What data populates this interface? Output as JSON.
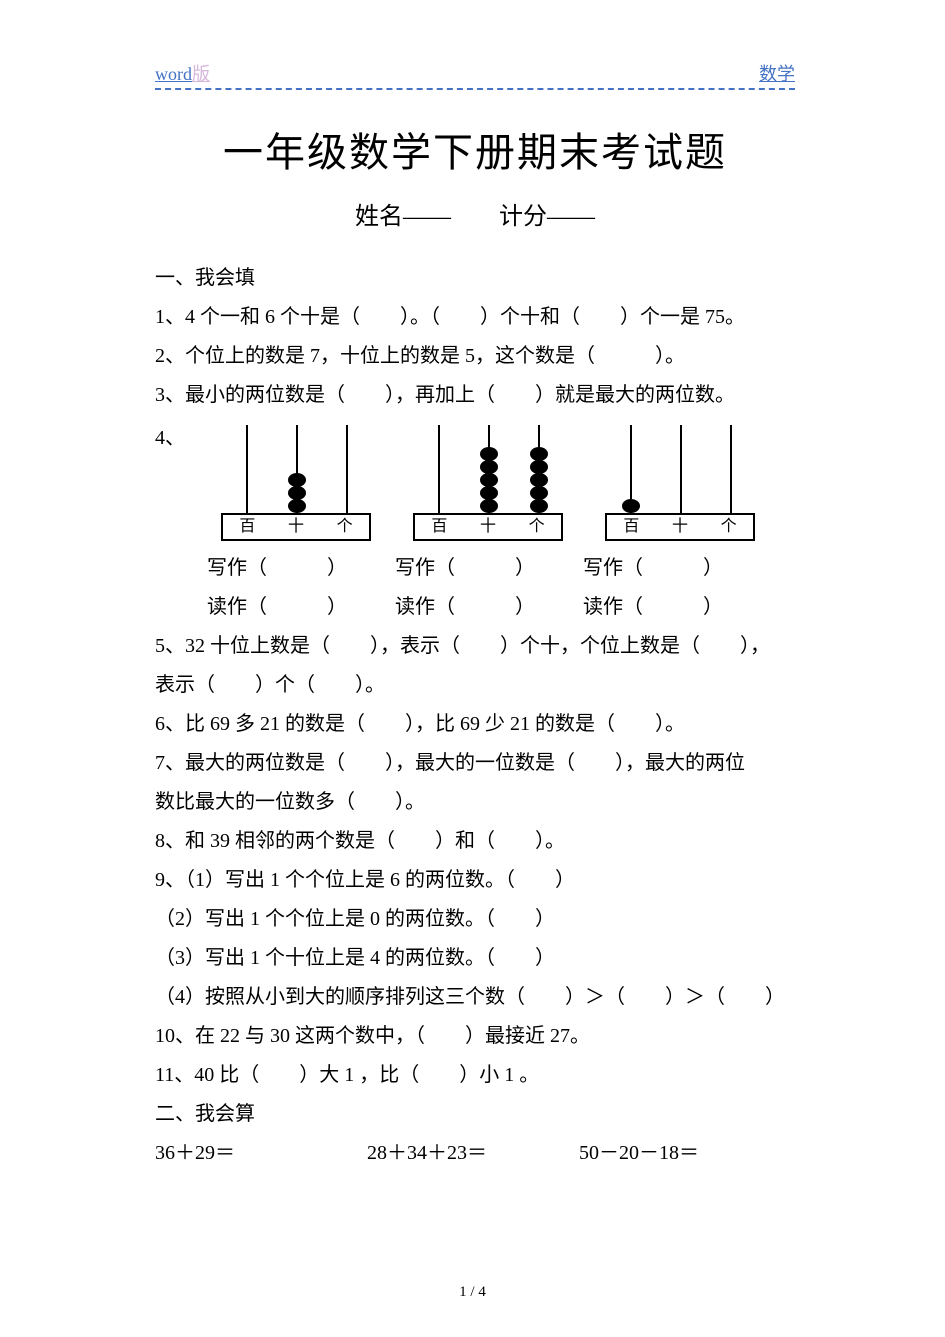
{
  "header": {
    "left_word": "word",
    "left_ban": "版",
    "right": "数学"
  },
  "title": "一年级数学下册期末考试题",
  "subtitle": "姓名——　　计分——",
  "section1_title": "一、我会填",
  "q1": "1、4 个一和 6 个十是（　　）。（　　）个十和（　　）个一是 75。",
  "q2": "2、个位上的数是 7，十位上的数是 5，这个数是（　　　）。",
  "q3": "3、最小的两位数是（　　），再加上（　　）就是最大的两位数。",
  "q4_label": "4、",
  "abacus_labels": {
    "bai": "百",
    "shi": "十",
    "ge": "个"
  },
  "abacus_beads": {
    "a1": {
      "bai": 0,
      "shi": 3,
      "ge": 0
    },
    "a2": {
      "bai": 0,
      "shi": 5,
      "ge": 5
    },
    "a3": {
      "bai": 1,
      "shi": 0,
      "ge": 0
    }
  },
  "write_label": "写作（　　　）",
  "read_label": "读作（　　　）",
  "q5a": "5、32 十位上数是（　　），表示（　　）个十，个位上数是（　　），",
  "q5b": "表示（　　）个（　　）。",
  "q6": "6、比 69 多 21 的数是（　　），比 69 少 21 的数是（　　）。",
  "q7a": "7、最大的两位数是（　　），最大的一位数是（　　），最大的两位",
  "q7b": "数比最大的一位数多（　　）。",
  "q8": "8、和 39 相邻的两个数是（　　）和（　　）。",
  "q9a": "9、（1）写出 1 个个位上是 6 的两位数。（　　）",
  "q9b": "（2）写出 1 个个位上是 0 的两位数。（　　）",
  "q9c": "（3）写出 1 个十位上是 4 的两位数。（　　）",
  "q9d": "（4）按照从小到大的顺序排列这三个数（　　）＞（　　）＞（　　）",
  "q10": "10、在 22 与 30 这两个数中，（　　）最接近 27。",
  "q11": "11、40 比（　　）大 1 ，比（　　）小 1 。",
  "section2_title": "二、我会算",
  "calc": {
    "c1": "36＋29＝",
    "c2": "28＋34＋23＝",
    "c3": "50－20－18＝"
  },
  "footer": "1 / 4"
}
